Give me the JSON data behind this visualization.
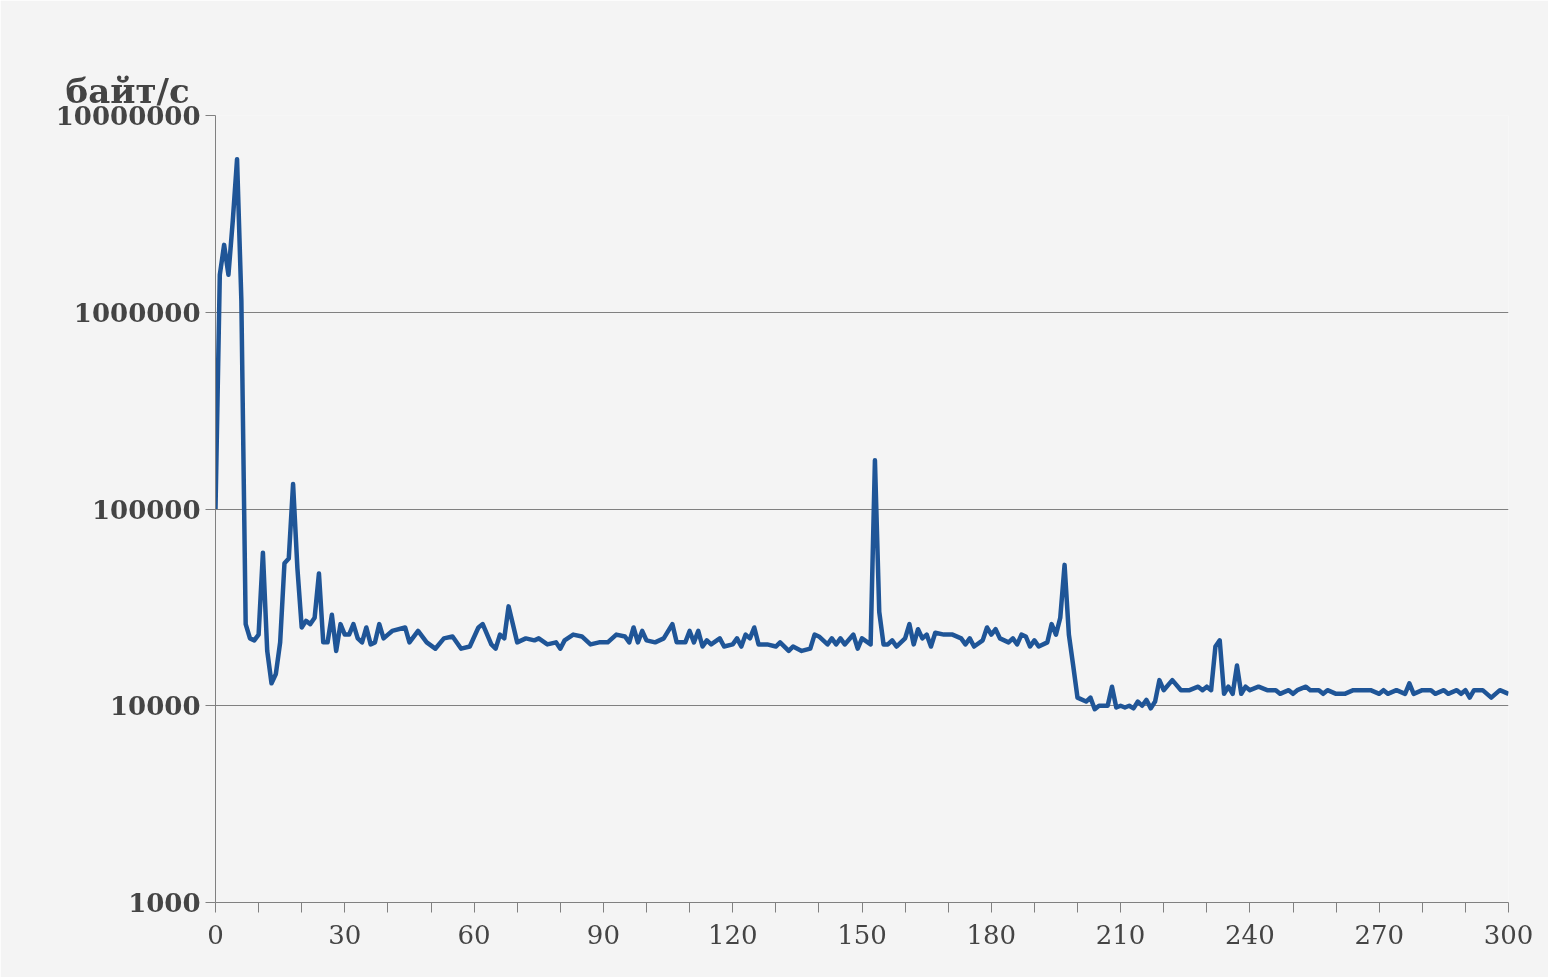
{
  "chart_data": {
    "type": "line",
    "ylabel": "байт/с",
    "log": "y",
    "grid": "y",
    "marker": "none",
    "line_style": "solid",
    "xlim": [
      0,
      300
    ],
    "ylim": [
      1000,
      10000000
    ],
    "xticks": [
      0,
      {
        "value": 10,
        "label": null
      },
      {
        "value": 20,
        "label": null
      },
      30,
      {
        "value": 40,
        "label": null
      },
      {
        "value": 50,
        "label": null
      },
      60,
      {
        "value": 70,
        "label": null
      },
      {
        "value": 80,
        "label": null
      },
      90,
      {
        "value": 100,
        "label": null
      },
      {
        "value": 110,
        "label": null
      },
      120,
      {
        "value": 130,
        "label": null
      },
      {
        "value": 140,
        "label": null
      },
      150,
      {
        "value": 160,
        "label": null
      },
      {
        "value": 170,
        "label": null
      },
      180,
      {
        "value": 190,
        "label": null
      },
      {
        "value": 200,
        "label": null
      },
      210,
      {
        "value": 220,
        "label": null
      },
      {
        "value": 230,
        "label": null
      },
      240,
      {
        "value": 250,
        "label": null
      },
      {
        "value": 260,
        "label": null
      },
      270,
      {
        "value": 280,
        "label": null
      },
      {
        "value": 290,
        "label": null
      },
      300
    ],
    "yticks": [
      1000,
      10000,
      100000,
      1000000,
      10000000
    ],
    "series": [
      {
        "color": "#1f5597",
        "x": [
          0,
          1,
          2,
          3,
          4,
          5,
          6,
          7,
          8,
          9,
          10,
          11,
          12,
          13,
          14,
          15,
          16,
          17,
          18,
          19,
          20,
          21,
          22,
          23,
          24,
          25,
          26,
          27,
          28,
          29,
          30,
          31,
          32,
          33,
          34,
          35,
          36,
          37,
          38,
          39,
          40,
          41,
          44,
          45,
          47,
          49,
          51,
          53,
          55,
          57,
          59,
          61,
          62,
          64,
          65,
          66,
          67,
          68,
          70,
          72,
          74,
          75,
          77,
          79,
          80,
          81,
          83,
          85,
          87,
          89,
          91,
          93,
          95,
          96,
          97,
          98,
          99,
          100,
          102,
          104,
          106,
          107,
          109,
          110,
          111,
          112,
          113,
          114,
          115,
          117,
          118,
          120,
          121,
          122,
          123,
          124,
          125,
          126,
          128,
          130,
          131,
          133,
          134,
          136,
          138,
          139,
          140,
          142,
          143,
          144,
          145,
          146,
          148,
          149,
          150,
          152,
          153,
          154,
          155,
          156,
          157,
          158,
          160,
          161,
          162,
          163,
          164,
          165,
          166,
          167,
          169,
          171,
          173,
          174,
          175,
          176,
          178,
          179,
          180,
          181,
          182,
          184,
          185,
          186,
          187,
          188,
          189,
          190,
          191,
          193,
          194,
          195,
          196,
          197,
          198,
          199,
          200,
          202,
          203,
          204,
          205,
          207,
          208,
          209,
          210,
          211,
          212,
          213,
          214,
          215,
          216,
          217,
          218,
          219,
          220,
          222,
          224,
          226,
          228,
          229,
          230,
          231,
          232,
          233,
          234,
          235,
          236,
          237,
          238,
          239,
          240,
          242,
          244,
          246,
          247,
          249,
          250,
          251,
          253,
          254,
          256,
          257,
          258,
          260,
          262,
          264,
          266,
          268,
          270,
          271,
          272,
          274,
          276,
          277,
          278,
          280,
          282,
          283,
          285,
          286,
          288,
          289,
          290,
          291,
          292,
          294,
          296,
          298,
          300
        ],
        "values": [
          100000,
          1550000,
          2200000,
          1550000,
          2900000,
          6000000,
          1150000,
          26000,
          22000,
          21500,
          23000,
          60000,
          19000,
          13000,
          14500,
          21000,
          53000,
          56000,
          134000,
          50000,
          25000,
          27000,
          26000,
          28000,
          47000,
          21000,
          21000,
          29000,
          19000,
          26000,
          23000,
          23000,
          26000,
          22000,
          21000,
          25000,
          20500,
          21000,
          26000,
          22000,
          23000,
          24000,
          25000,
          21000,
          24000,
          21000,
          19500,
          22000,
          22500,
          19500,
          20000,
          25000,
          26000,
          20500,
          19500,
          23000,
          22000,
          32000,
          21000,
          22000,
          21500,
          22000,
          20500,
          21000,
          19500,
          21500,
          23000,
          22500,
          20500,
          21000,
          21000,
          23000,
          22500,
          21000,
          25000,
          21000,
          24000,
          21500,
          21000,
          22000,
          26000,
          21000,
          21000,
          24000,
          21000,
          24000,
          20000,
          21500,
          20500,
          22000,
          20000,
          20500,
          22000,
          20000,
          23000,
          22000,
          25000,
          20500,
          20500,
          20000,
          21000,
          19000,
          20000,
          19000,
          19500,
          23000,
          22500,
          20500,
          22000,
          20500,
          22000,
          20500,
          23000,
          19500,
          22000,
          20500,
          177000,
          30000,
          20500,
          20500,
          21500,
          20000,
          22000,
          26000,
          20500,
          24500,
          22000,
          23000,
          20000,
          23500,
          23000,
          23000,
          22000,
          20500,
          22000,
          20000,
          21500,
          25000,
          23000,
          24500,
          22000,
          21000,
          22000,
          20500,
          23000,
          22500,
          20000,
          21500,
          20000,
          21000,
          26000,
          23000,
          28000,
          52000,
          23000,
          16000,
          11000,
          10500,
          11000,
          9600,
          10000,
          10000,
          12500,
          9800,
          10000,
          9800,
          10000,
          9700,
          10500,
          10000,
          10700,
          9700,
          10500,
          13500,
          12000,
          13500,
          12000,
          12000,
          12500,
          12000,
          12500,
          12000,
          20000,
          21500,
          11500,
          12500,
          11500,
          16000,
          11500,
          12500,
          12000,
          12500,
          12000,
          12000,
          11500,
          12000,
          11500,
          12000,
          12500,
          12000,
          12000,
          11500,
          12000,
          11500,
          11500,
          12000,
          12000,
          12000,
          11500,
          12000,
          11500,
          12000,
          11500,
          13000,
          11500,
          12000,
          12000,
          11500,
          12000,
          11500,
          12000,
          11500,
          12000,
          11000,
          12000,
          12000,
          11000,
          12000,
          11500
        ]
      }
    ]
  }
}
